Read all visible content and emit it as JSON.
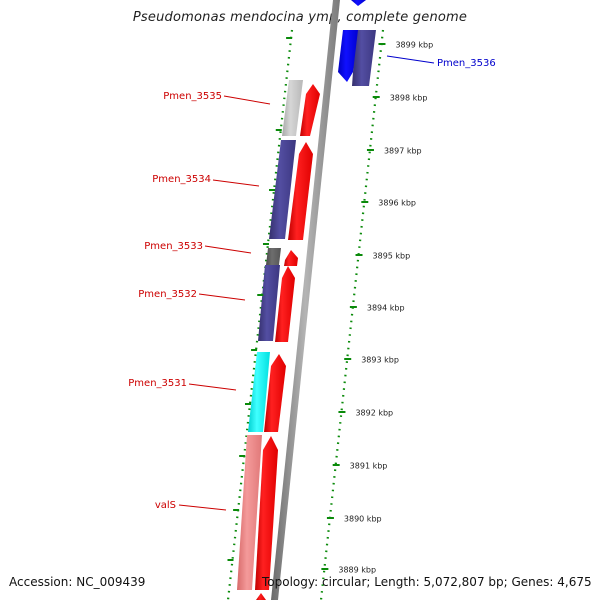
{
  "title": "Pseudomonas mendocina ymp, complete genome",
  "accession": "Accession: NC_009439",
  "topology": "Topology: circular; Length: 5,072,807 bp; Genes: 4,675",
  "scale_labels": [
    "3899 kbp",
    "3898 kbp",
    "3897 kbp",
    "3896 kbp",
    "3895 kbp",
    "3894 kbp",
    "3893 kbp",
    "3892 kbp",
    "3891 kbp",
    "3890 kbp",
    "3889 kbp"
  ],
  "gene_labels": [
    {
      "text": "Pmen_3536",
      "color": "#0000cc"
    },
    {
      "text": "Pmen_3535",
      "color": "#cc0000"
    },
    {
      "text": "Pmen_3534",
      "color": "#cc0000"
    },
    {
      "text": "Pmen_3533",
      "color": "#cc0000"
    },
    {
      "text": "Pmen_3532",
      "color": "#cc0000"
    },
    {
      "text": "Pmen_3531",
      "color": "#cc0000"
    },
    {
      "text": "valS",
      "color": "#cc0000"
    }
  ],
  "colors": {
    "forward_cds": "#ff0000",
    "reverse_cds_blue": "#0000ff",
    "cog_slate": "#4b4696",
    "cog_gray_light": "#c8c8c8",
    "cog_gray_dark": "#646464",
    "cog_cyan": "#00ffff",
    "cog_pink": "#f08080",
    "dotted_guides": "#008000",
    "backbone": "#909090"
  }
}
